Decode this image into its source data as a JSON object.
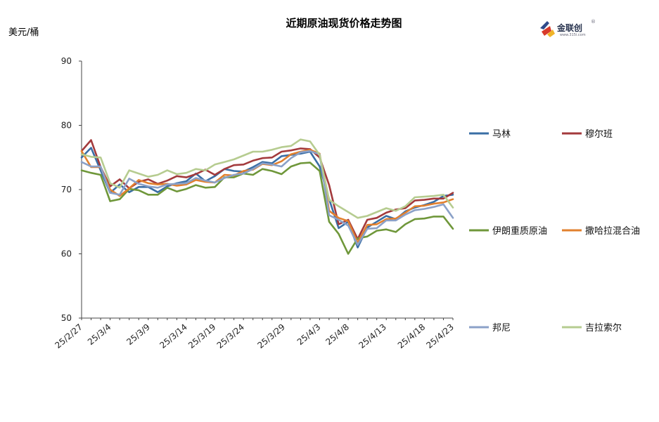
{
  "chart_data": {
    "type": "line",
    "title": "近期原油现货价格走势图",
    "ylabel": "美元/桶",
    "xlabel": "",
    "ylim": [
      50,
      90
    ],
    "yticks": [
      50,
      60,
      70,
      80,
      90
    ],
    "grid": false,
    "legend_position": "right",
    "x": [
      "25/2/27",
      "25/2/28",
      "25/3/3",
      "25/3/4",
      "25/3/5",
      "25/3/6",
      "25/3/7",
      "25/3/10",
      "25/3/11",
      "25/3/12",
      "25/3/13",
      "25/3/14",
      "25/3/17",
      "25/3/18",
      "25/3/19",
      "25/3/20",
      "25/3/21",
      "25/3/24",
      "25/3/25",
      "25/3/26",
      "25/3/27",
      "25/3/28",
      "25/3/31",
      "25/4/1",
      "25/4/2",
      "25/4/3",
      "25/4/4",
      "25/4/7",
      "25/4/8",
      "25/4/9",
      "25/4/10",
      "25/4/11",
      "25/4/14",
      "25/4/15",
      "25/4/16",
      "25/4/17",
      "25/4/18",
      "25/4/21",
      "25/4/22",
      "25/4/23"
    ],
    "xtick_labels": [
      "25/2/27",
      "25/3/4",
      "25/3/9",
      "25/3/14",
      "25/3/19",
      "25/3/24",
      "25/3/29",
      "25/4/3",
      "25/4/8",
      "25/4/13",
      "25/4/18",
      "25/4/23"
    ],
    "series": [
      {
        "name": "马林",
        "color": "#3a6ea5",
        "values": [
          75.0,
          76.5,
          73.0,
          69.5,
          70.8,
          69.6,
          70.4,
          70.4,
          69.6,
          70.5,
          71.0,
          71.3,
          72.5,
          71.3,
          72.1,
          73.2,
          72.9,
          72.8,
          73.5,
          74.3,
          74.1,
          75.2,
          75.4,
          75.6,
          75.9,
          73.6,
          68.5,
          64.0,
          65.0,
          61.0,
          64.1,
          65.0,
          65.9,
          65.4,
          66.6,
          67.2,
          67.6,
          68.1,
          69.0,
          69.2
        ]
      },
      {
        "name": "穆尔班",
        "color": "#a33a3c",
        "values": [
          76.0,
          77.7,
          73.5,
          70.5,
          71.6,
          70.2,
          71.2,
          71.6,
          70.9,
          71.4,
          72.1,
          71.9,
          72.4,
          73.1,
          72.3,
          73.2,
          73.8,
          73.9,
          74.5,
          74.9,
          75.0,
          75.9,
          76.1,
          76.4,
          76.3,
          75.0,
          70.7,
          64.6,
          65.3,
          62.3,
          65.3,
          65.6,
          66.4,
          66.9,
          67.1,
          68.3,
          68.4,
          68.6,
          68.6,
          69.5
        ]
      },
      {
        "name": "伊朗重质原油",
        "color": "#6f973a",
        "values": [
          73.0,
          72.6,
          72.3,
          68.2,
          68.5,
          70.1,
          69.9,
          69.2,
          69.2,
          70.3,
          69.7,
          70.1,
          70.7,
          70.3,
          70.4,
          71.9,
          71.9,
          72.5,
          72.3,
          73.2,
          72.9,
          72.4,
          73.6,
          74.1,
          74.2,
          72.9,
          65.0,
          63.1,
          60.0,
          62.4,
          62.7,
          63.6,
          63.8,
          63.4,
          64.6,
          65.4,
          65.5,
          65.8,
          65.8,
          63.9
        ]
      },
      {
        "name": "撒哈拉混合油",
        "color": "#e2802e",
        "values": [
          76.0,
          73.5,
          73.5,
          70.0,
          69.0,
          70.2,
          71.5,
          71.0,
          70.8,
          70.9,
          70.6,
          70.8,
          71.5,
          71.2,
          71.1,
          72.3,
          72.2,
          72.9,
          73.1,
          74.0,
          73.8,
          74.4,
          75.5,
          75.9,
          76.2,
          75.6,
          66.7,
          65.6,
          65.1,
          61.7,
          64.5,
          64.6,
          65.4,
          65.5,
          66.4,
          67.4,
          67.5,
          67.8,
          68.0,
          68.5
        ]
      },
      {
        "name": "邦尼",
        "color": "#8ba1c8",
        "values": [
          74.3,
          73.6,
          73.6,
          69.5,
          69.2,
          71.7,
          70.9,
          70.5,
          70.3,
          70.8,
          70.9,
          71.0,
          71.8,
          71.4,
          71.1,
          71.8,
          72.3,
          72.5,
          73.2,
          74.1,
          73.9,
          73.6,
          74.9,
          75.8,
          76.0,
          75.5,
          66.0,
          65.3,
          64.4,
          61.4,
          63.9,
          64.0,
          65.2,
          65.2,
          66.1,
          66.8,
          67.0,
          67.3,
          67.7,
          65.6
        ]
      },
      {
        "name": "吉拉索尔",
        "color": "#b6cc90",
        "values": [
          75.5,
          75.1,
          75.0,
          71.0,
          70.3,
          73.0,
          72.5,
          72.0,
          72.3,
          73.0,
          72.4,
          72.6,
          73.2,
          73.0,
          73.9,
          74.3,
          74.7,
          75.3,
          75.9,
          75.9,
          76.2,
          76.6,
          76.8,
          77.8,
          77.5,
          75.4,
          68.4,
          67.4,
          66.5,
          65.6,
          65.9,
          66.5,
          67.1,
          66.7,
          67.4,
          68.8,
          68.9,
          69.0,
          69.2,
          67.2
        ]
      }
    ]
  },
  "logo": {
    "text": "金联创",
    "sub": "www.315i.com",
    "mark": "®"
  }
}
